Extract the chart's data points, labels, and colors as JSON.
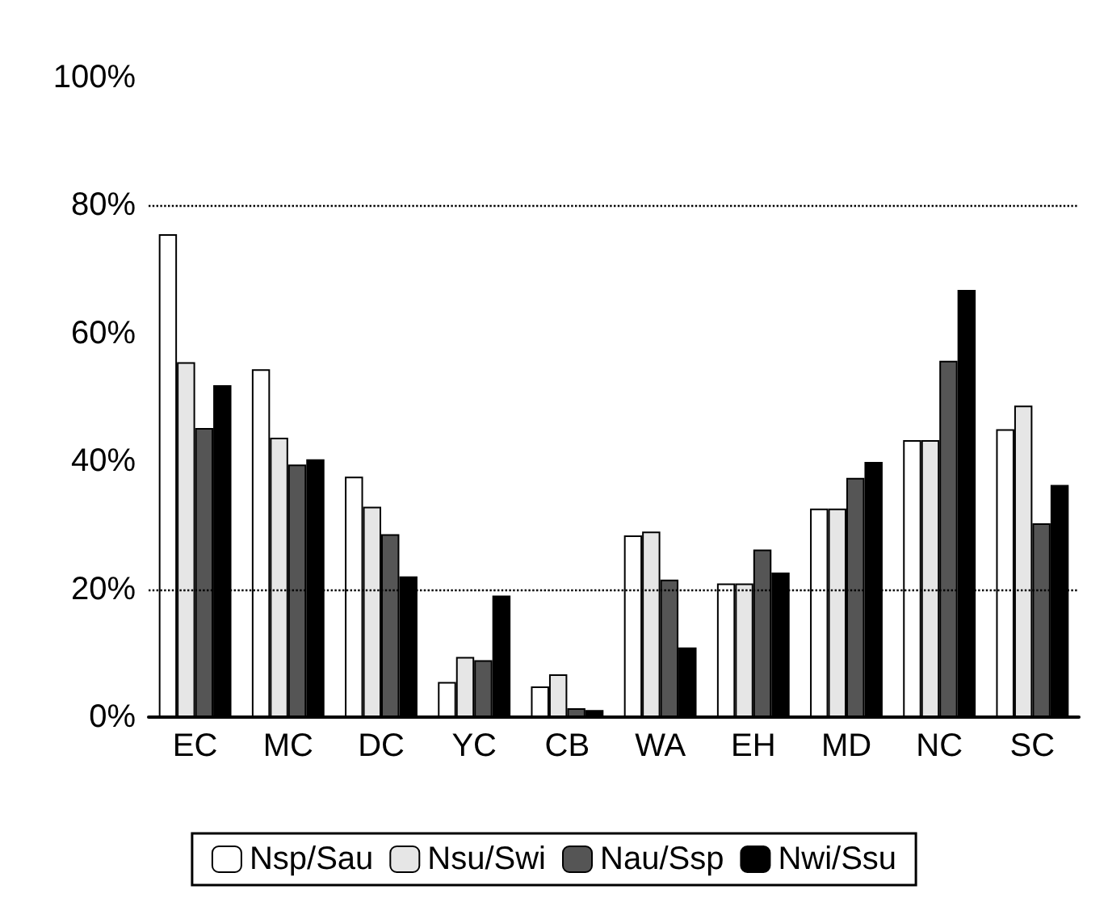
{
  "chart_data": {
    "type": "bar",
    "categories": [
      "EC",
      "MC",
      "DC",
      "YC",
      "CB",
      "WA",
      "EH",
      "MD",
      "NC",
      "SC"
    ],
    "series": [
      {
        "name": "Nsp/Sau",
        "color": "#ffffff",
        "values": [
          75.5,
          54.4,
          37.6,
          5.5,
          4.8,
          28.4,
          20.9,
          32.6,
          43.3,
          45
        ]
      },
      {
        "name": "Nsu/Swi",
        "color": "#e6e6e6",
        "values": [
          55.5,
          43.7,
          32.9,
          9.4,
          6.7,
          29,
          20.9,
          32.6,
          43.3,
          48.7
        ]
      },
      {
        "name": "Nau/Ssp",
        "color": "#555555",
        "values": [
          45.2,
          39.5,
          28.6,
          8.9,
          1.4,
          21.5,
          26.2,
          37.4,
          55.7,
          30.3
        ]
      },
      {
        "name": "Nwi/Ssu",
        "color": "#000000",
        "values": [
          51.9,
          40.3,
          22,
          19,
          1.1,
          10.9,
          22.6,
          39.9,
          66.8,
          36.3
        ]
      }
    ],
    "ylim": [
      0,
      100
    ],
    "yticks": [
      {
        "value": 0,
        "label": "0%"
      },
      {
        "value": 20,
        "label": "20%"
      },
      {
        "value": 40,
        "label": "40%"
      },
      {
        "value": 60,
        "label": "60%"
      },
      {
        "value": 80,
        "label": "80%"
      },
      {
        "value": 100,
        "label": "100%"
      }
    ],
    "ref_lines": [
      {
        "axis": "y",
        "value": 20,
        "line_style": "dotted",
        "color": "#000000"
      },
      {
        "axis": "y",
        "value": 80,
        "line_style": "dotted",
        "color": "#000000"
      }
    ],
    "grid": false,
    "legend": "bottom"
  }
}
